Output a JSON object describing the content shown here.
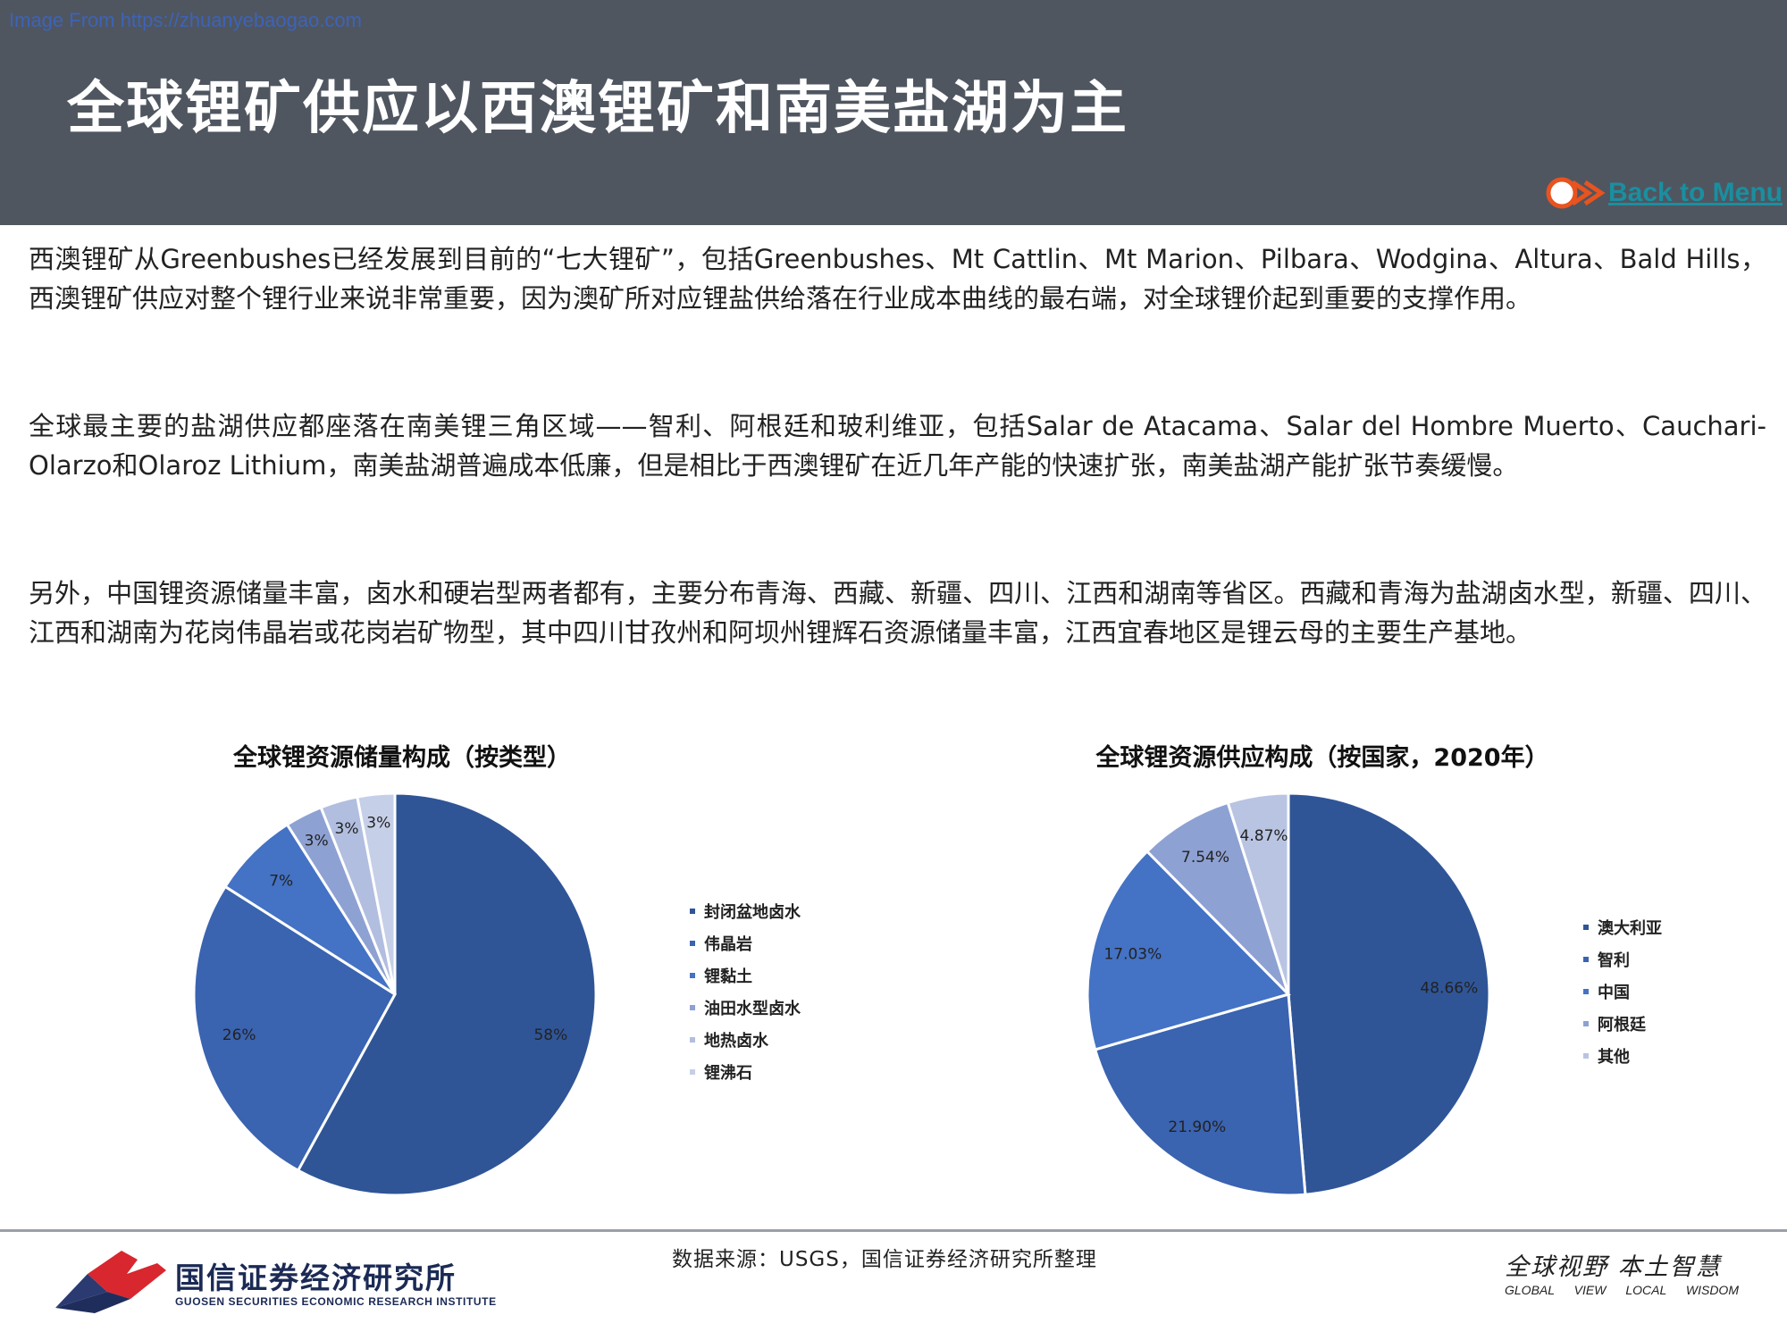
{
  "watermark": "Image From https://zhuanyebaogao.com",
  "title": "全球锂矿供应以西澳锂矿和南美盐湖为主",
  "back_link": "Back to Menu",
  "paragraphs": [
    "西澳锂矿从Greenbushes已经发展到目前的“七大锂矿”，包括Greenbushes、Mt Cattlin、Mt Marion、Pilbara、Wodgina、Altura、Bald Hills，西澳锂矿供应对整个锂行业来说非常重要，因为澳矿所对应锂盐供给落在行业成本曲线的最右端，对全球锂价起到重要的支撑作用。",
    "全球最主要的盐湖供应都座落在南美锂三角区域——智利、阿根廷和玻利维亚，包括Salar de Atacama、Salar del Hombre Muerto、Cauchari-Olarzo和Olaroz Lithium，南美盐湖普遍成本低廉，但是相比于西澳锂矿在近几年产能的快速扩张，南美盐湖产能扩张节奏缓慢。",
    "另外，中国锂资源储量丰富，卤水和硬岩型两者都有，主要分布青海、西藏、新疆、四川、江西和湖南等省区。西藏和青海为盐湖卤水型，新疆、四川、江西和湖南为花岗伟晶岩或花岗岩矿物型，其中四川甘孜州和阿坝州锂辉石资源储量丰富，江西宜春地区是锂云母的主要生产基地。"
  ],
  "chart_data": [
    {
      "type": "pie",
      "title": "全球锂资源储量构成（按类型）",
      "categories": [
        "封闭盆地卤水",
        "伟晶岩",
        "锂黏土",
        "油田水型卤水",
        "地热卤水",
        "锂沸石"
      ],
      "values": [
        58,
        26,
        7,
        3,
        3,
        3
      ],
      "labels": [
        "58%",
        "26%",
        "7%",
        "3%",
        "3%",
        "3%"
      ],
      "colors": [
        "#2f5597",
        "#3a63b0",
        "#4472c4",
        "#8ea1d3",
        "#b1bedf",
        "#c6cfe8"
      ],
      "legend": "right"
    },
    {
      "type": "pie",
      "title": "全球锂资源供应构成（按国家，2020年）",
      "categories": [
        "澳大利亚",
        "智利",
        "中国",
        "阿根廷",
        "其他"
      ],
      "values": [
        48.66,
        21.9,
        17.03,
        7.54,
        4.87
      ],
      "labels": [
        "48.66%",
        "21.90%",
        "17.03%",
        "7.54%",
        "4.87%"
      ],
      "colors": [
        "#2f5597",
        "#3a63b0",
        "#4472c4",
        "#8ea1d3",
        "#b9c4e2"
      ],
      "legend": "right"
    }
  ],
  "footer": {
    "source": "数据来源：USGS，国信证券经济研究所整理",
    "org_name": "国信证券经济研究所",
    "org_sub": "GUOSEN SECURITIES ECONOMIC RESEARCH INSTITUTE",
    "slogan": "全球视野 本土智慧",
    "slogan_en": "GLOBAL VIEW LOCAL WISDOM"
  }
}
